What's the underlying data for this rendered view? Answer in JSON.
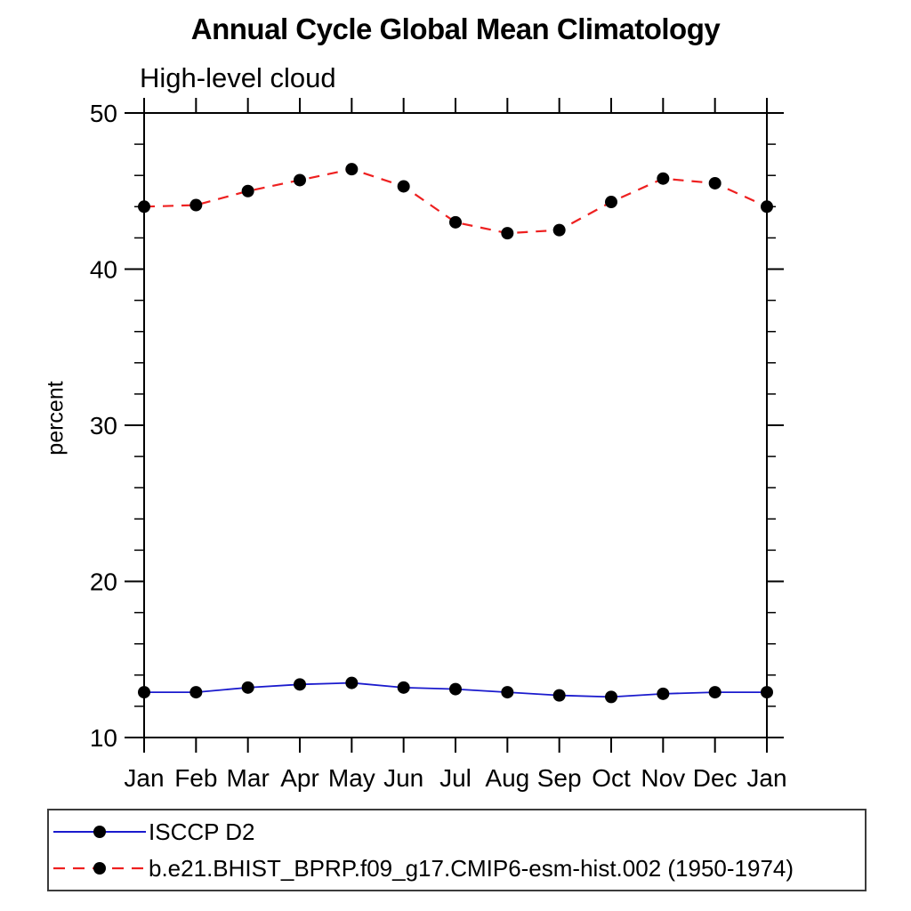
{
  "chart_data": {
    "type": "line",
    "title": "Annual Cycle Global Mean Climatology",
    "subtitle": "High-level cloud",
    "ylabel": "percent",
    "categories": [
      "Jan",
      "Feb",
      "Mar",
      "Apr",
      "May",
      "Jun",
      "Jul",
      "Aug",
      "Sep",
      "Oct",
      "Nov",
      "Dec",
      "Jan"
    ],
    "ylim": [
      10,
      50
    ],
    "yticks": [
      10,
      20,
      30,
      40,
      50
    ],
    "minor_tick_step": 2,
    "grid": false,
    "legend_position": "bottom",
    "axis_color": "#000000",
    "series": [
      {
        "name": "ISCCP D2",
        "color": "#1a1acd",
        "line_style": "solid",
        "marker": "circle",
        "marker_color": "#000000",
        "values": [
          12.9,
          12.9,
          13.2,
          13.4,
          13.5,
          13.2,
          13.1,
          12.9,
          12.7,
          12.6,
          12.8,
          12.9,
          12.9
        ]
      },
      {
        "name": "b.e21.BHIST_BPRP.f09_g17.CMIP6-esm-hist.002 (1950-1974)",
        "color": "#ee2020",
        "line_style": "dashed",
        "marker": "circle",
        "marker_color": "#000000",
        "values": [
          44.0,
          44.1,
          45.0,
          45.7,
          46.4,
          45.3,
          43.0,
          42.3,
          42.5,
          44.3,
          45.8,
          45.5,
          44.0
        ]
      }
    ]
  }
}
